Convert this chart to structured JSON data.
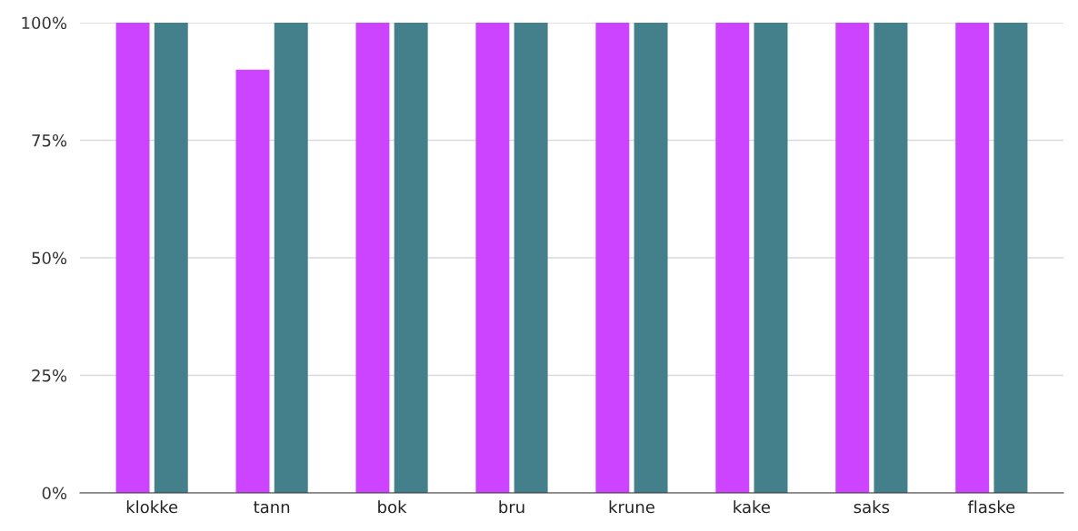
{
  "chart_data": {
    "type": "bar",
    "categories": [
      "klokke",
      "tann",
      "bok",
      "bru",
      "krune",
      "kake",
      "saks",
      "flaske"
    ],
    "series": [
      {
        "color": "#cc44ff",
        "values": [
          100,
          90,
          100,
          100,
          100,
          100,
          100,
          100
        ]
      },
      {
        "color": "#44808c",
        "values": [
          100,
          100,
          100,
          100,
          100,
          100,
          100,
          100
        ]
      }
    ],
    "ylim": [
      0,
      100
    ],
    "yticks": [
      {
        "value": 0,
        "label": "0%"
      },
      {
        "value": 25,
        "label": "25%"
      },
      {
        "value": 50,
        "label": "50%"
      },
      {
        "value": 75,
        "label": "75%"
      },
      {
        "value": 100,
        "label": "100%"
      }
    ],
    "grid": "y"
  }
}
